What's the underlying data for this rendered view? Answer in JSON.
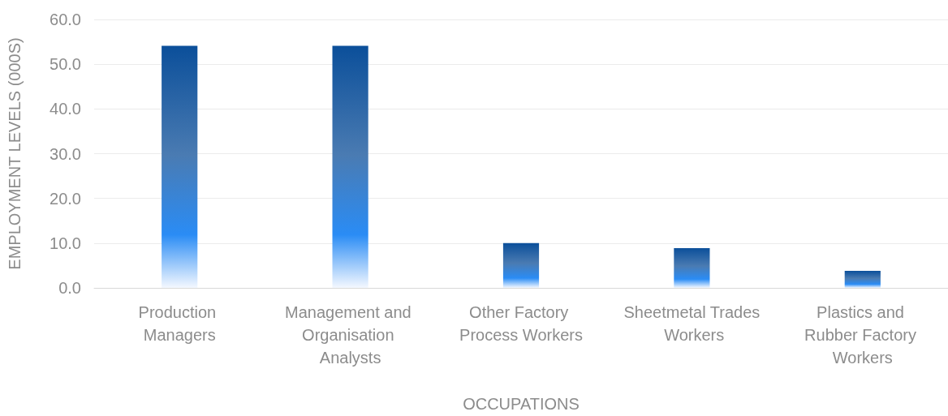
{
  "chart_data": {
    "type": "bar",
    "xlabel": "OCCUPATIONS",
    "ylabel": "EMPLOYMENT LEVELS (000S)",
    "categories": [
      "Production Managers",
      "Management and Organisation Analysts",
      "Other Factory Process Workers",
      "Sheetmetal Trades Workers",
      "Plastics and Rubber Factory Workers"
    ],
    "values": [
      54.1,
      54.1,
      10.0,
      8.9,
      3.8
    ],
    "color": "#0b4f9a",
    "ylim": [
      0,
      60
    ],
    "yticks": [
      {
        "value": 0,
        "label": "0.0"
      },
      {
        "value": 10,
        "label": "10.0"
      },
      {
        "value": 20,
        "label": "20.0"
      },
      {
        "value": 30,
        "label": "30.0"
      },
      {
        "value": 40,
        "label": "40.0"
      },
      {
        "value": 50,
        "label": "50.0"
      },
      {
        "value": 60,
        "label": "60.0"
      }
    ],
    "grid": "y"
  }
}
